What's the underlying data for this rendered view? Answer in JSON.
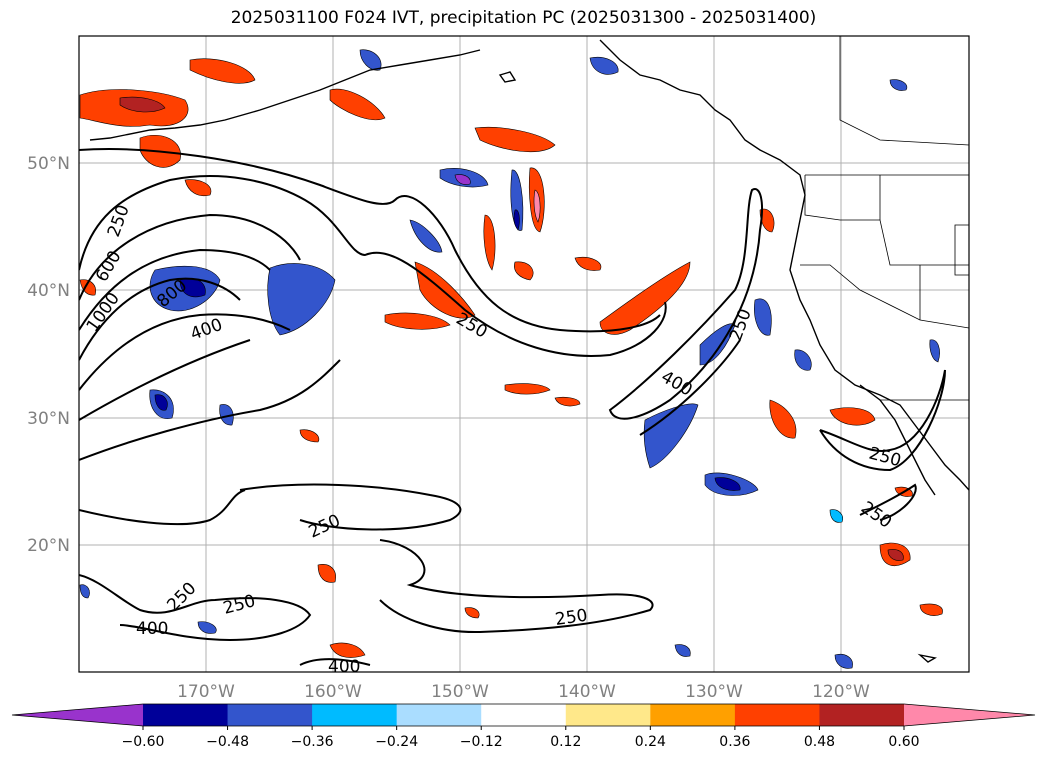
{
  "title": "2025031100 F024 IVT, precipitation PC (2025031300 - 2025031400)",
  "map": {
    "lat_labels": [
      "50°N",
      "40°N",
      "30°N",
      "20°N"
    ],
    "lon_labels": [
      "170°W",
      "160°W",
      "150°W",
      "140°W",
      "130°W",
      "120°W"
    ],
    "contour_labels": [
      "250",
      "600",
      "1000",
      "800",
      "400",
      "250",
      "400",
      "250",
      "250",
      "250",
      "250",
      "250",
      "400",
      "250",
      "250",
      "400"
    ]
  },
  "colorbar": {
    "ticks": [
      "−0.60",
      "−0.48",
      "−0.36",
      "−0.24",
      "−0.12",
      "0.12",
      "0.24",
      "0.36",
      "0.48",
      "0.60"
    ],
    "colors": [
      "#9933cc",
      "#000099",
      "#3355cc",
      "#00bbff",
      "#aaddff",
      "#ffffff",
      "#ffe88a",
      "#ffa000",
      "#ff4000",
      "#b22222",
      "#ff88aa"
    ]
  }
}
